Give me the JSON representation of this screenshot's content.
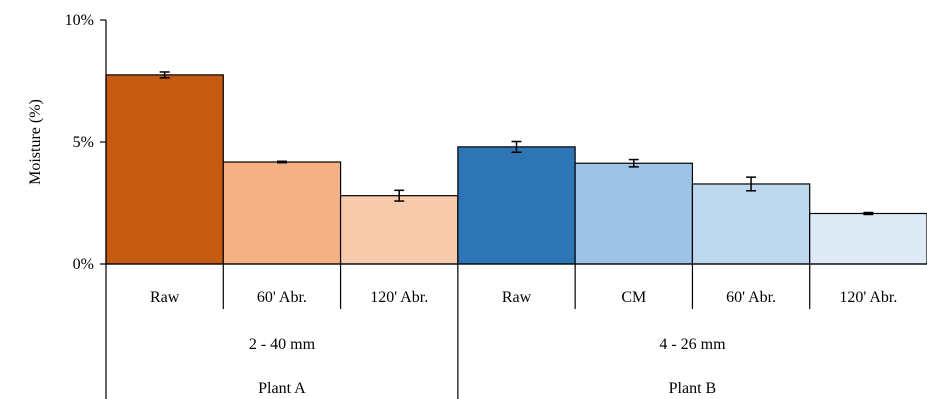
{
  "chart_data": {
    "type": "bar",
    "ylabel": "Moisture (%)",
    "ylim": [
      0,
      10
    ],
    "yticks": [
      {
        "value": 0,
        "label": "0%"
      },
      {
        "value": 5,
        "label": "5%"
      },
      {
        "value": 10,
        "label": "10%"
      }
    ],
    "grid": false,
    "legend": "none",
    "categories": [
      "Raw",
      "60' Abr.",
      "120' Abr.",
      "Raw",
      "CM",
      "60' Abr.",
      "120' Abr."
    ],
    "values": [
      7.75,
      4.18,
      2.8,
      4.8,
      4.13,
      3.28,
      2.07
    ],
    "errors": [
      0.12,
      0.03,
      0.22,
      0.22,
      0.15,
      0.28,
      0.04
    ],
    "colors": [
      "#c55a11",
      "#f4b183",
      "#f8cbad",
      "#2e75b6",
      "#9dc3e6",
      "#bdd7ee",
      "#deebf7"
    ],
    "groups": [
      {
        "label": "2 - 40 mm",
        "start": 0,
        "count": 3
      },
      {
        "label": "4 - 26 mm",
        "start": 3,
        "count": 4
      }
    ],
    "supergroups": [
      {
        "label": "Plant A",
        "start": 0,
        "count": 3
      },
      {
        "label": "Plant B",
        "start": 3,
        "count": 4
      }
    ]
  }
}
